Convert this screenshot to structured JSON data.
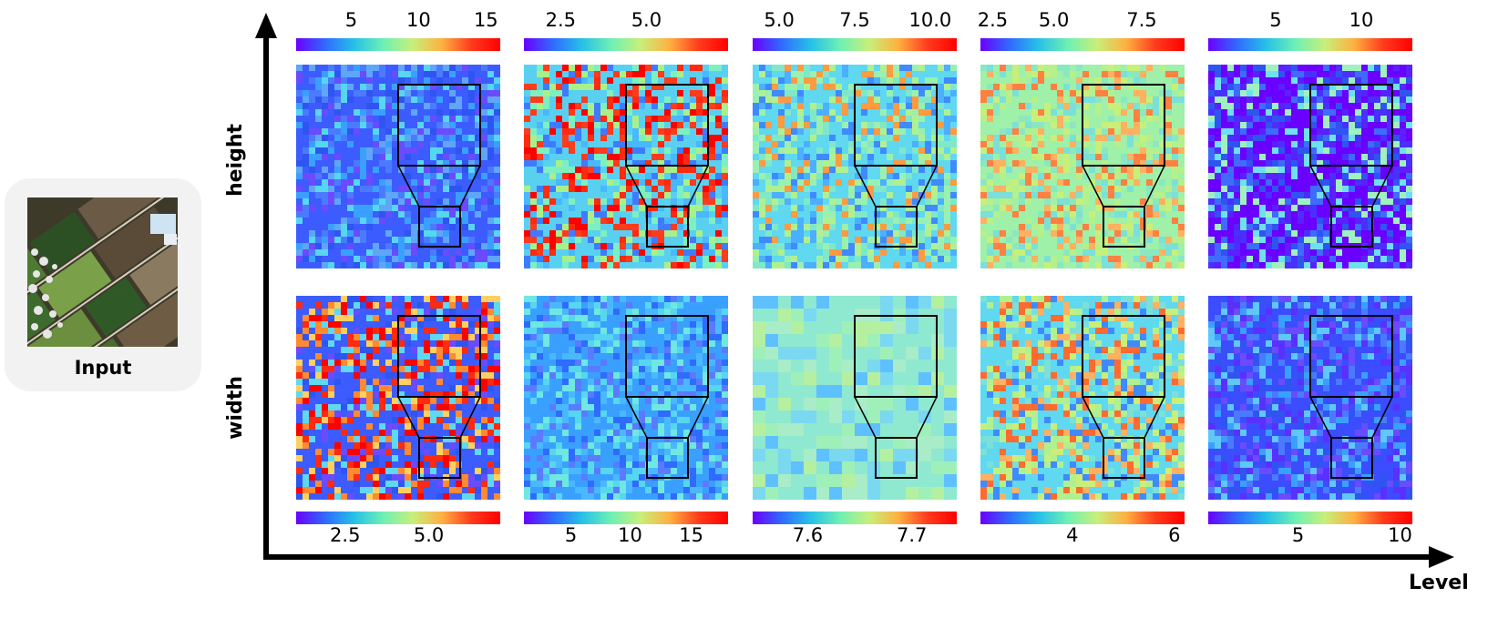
{
  "input_label": "Input",
  "row_labels": {
    "height": "height",
    "width": "width"
  },
  "axis_label": "Level",
  "colorbars_top": [
    {
      "ticks": [
        "5",
        "10",
        "15"
      ],
      "positions": [
        0.27,
        0.6,
        0.93
      ]
    },
    {
      "ticks": [
        "2.5",
        "5.0"
      ],
      "positions": [
        0.18,
        0.6
      ]
    },
    {
      "ticks": [
        "5.0",
        "7.5",
        "10.0"
      ],
      "positions": [
        0.13,
        0.5,
        0.87
      ]
    },
    {
      "ticks": [
        "2.5",
        "5.0",
        "7.5"
      ],
      "positions": [
        0.01,
        0.36,
        0.79
      ]
    },
    {
      "ticks": [
        "5",
        "10"
      ],
      "positions": [
        0.33,
        0.75
      ]
    }
  ],
  "colorbars_bottom": [
    {
      "ticks": [
        "2.5",
        "5.0"
      ],
      "positions": [
        0.24,
        0.65
      ]
    },
    {
      "ticks": [
        "5",
        "10",
        "15"
      ],
      "positions": [
        0.23,
        0.52,
        0.82
      ]
    },
    {
      "ticks": [
        "7.6",
        "7.7"
      ],
      "positions": [
        0.27,
        0.78
      ]
    },
    {
      "ticks": [
        "4",
        "6"
      ],
      "positions": [
        0.45,
        0.95
      ]
    },
    {
      "ticks": [
        "5",
        "10"
      ],
      "positions": [
        0.44,
        0.98
      ]
    }
  ],
  "colors": {
    "axis": "#000000",
    "card_bg": "#f2f2f2"
  }
}
